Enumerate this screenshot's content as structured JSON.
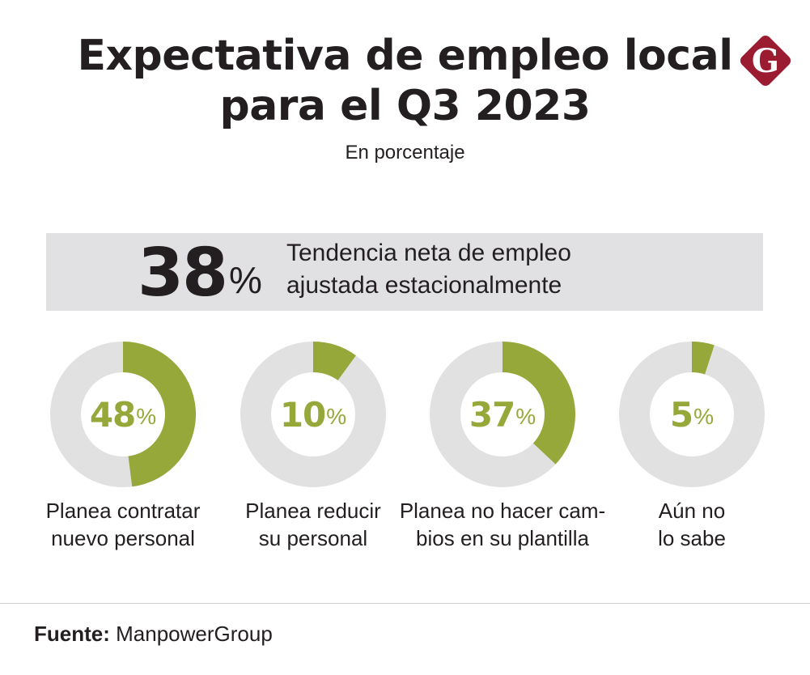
{
  "header": {
    "title_line1": "Expectativa de empleo local",
    "title_line2": "para el Q3 2023",
    "subtitle": "En porcentaje",
    "logo_letter": "G",
    "logo_color": "#9b1b30"
  },
  "highlight": {
    "value": "38",
    "unit": "%",
    "text_line1": "Tendencia neta de empleo",
    "text_line2": "ajustada estacionalmente",
    "background": "#e1e1e3"
  },
  "chart_data": {
    "type": "pie",
    "subtype": "donut-set",
    "title": "Expectativa de empleo local para el Q3 2023",
    "subtitle": "En porcentaje",
    "unit": "%",
    "series": [
      {
        "name": "Planea contratar nuevo personal",
        "value": 48,
        "label_line1": "Planea contratar",
        "label_line2": "nuevo personal"
      },
      {
        "name": "Planea reducir su personal",
        "value": 10,
        "label_line1": "Planea reducir",
        "label_line2": "su personal"
      },
      {
        "name": "Planea no hacer cambios en su plantilla",
        "value": 37,
        "label_line1": "Planea no hacer cam-",
        "label_line2": "bios en su plantilla"
      },
      {
        "name": "Aún no lo sabe",
        "value": 5,
        "label_line1": "Aún no",
        "label_line2": "lo sabe"
      }
    ],
    "colors": {
      "value": "#96a83a",
      "remainder": "#e1e1e1"
    }
  },
  "footer": {
    "source_label": "Fuente:",
    "source_value": "ManpowerGroup"
  }
}
